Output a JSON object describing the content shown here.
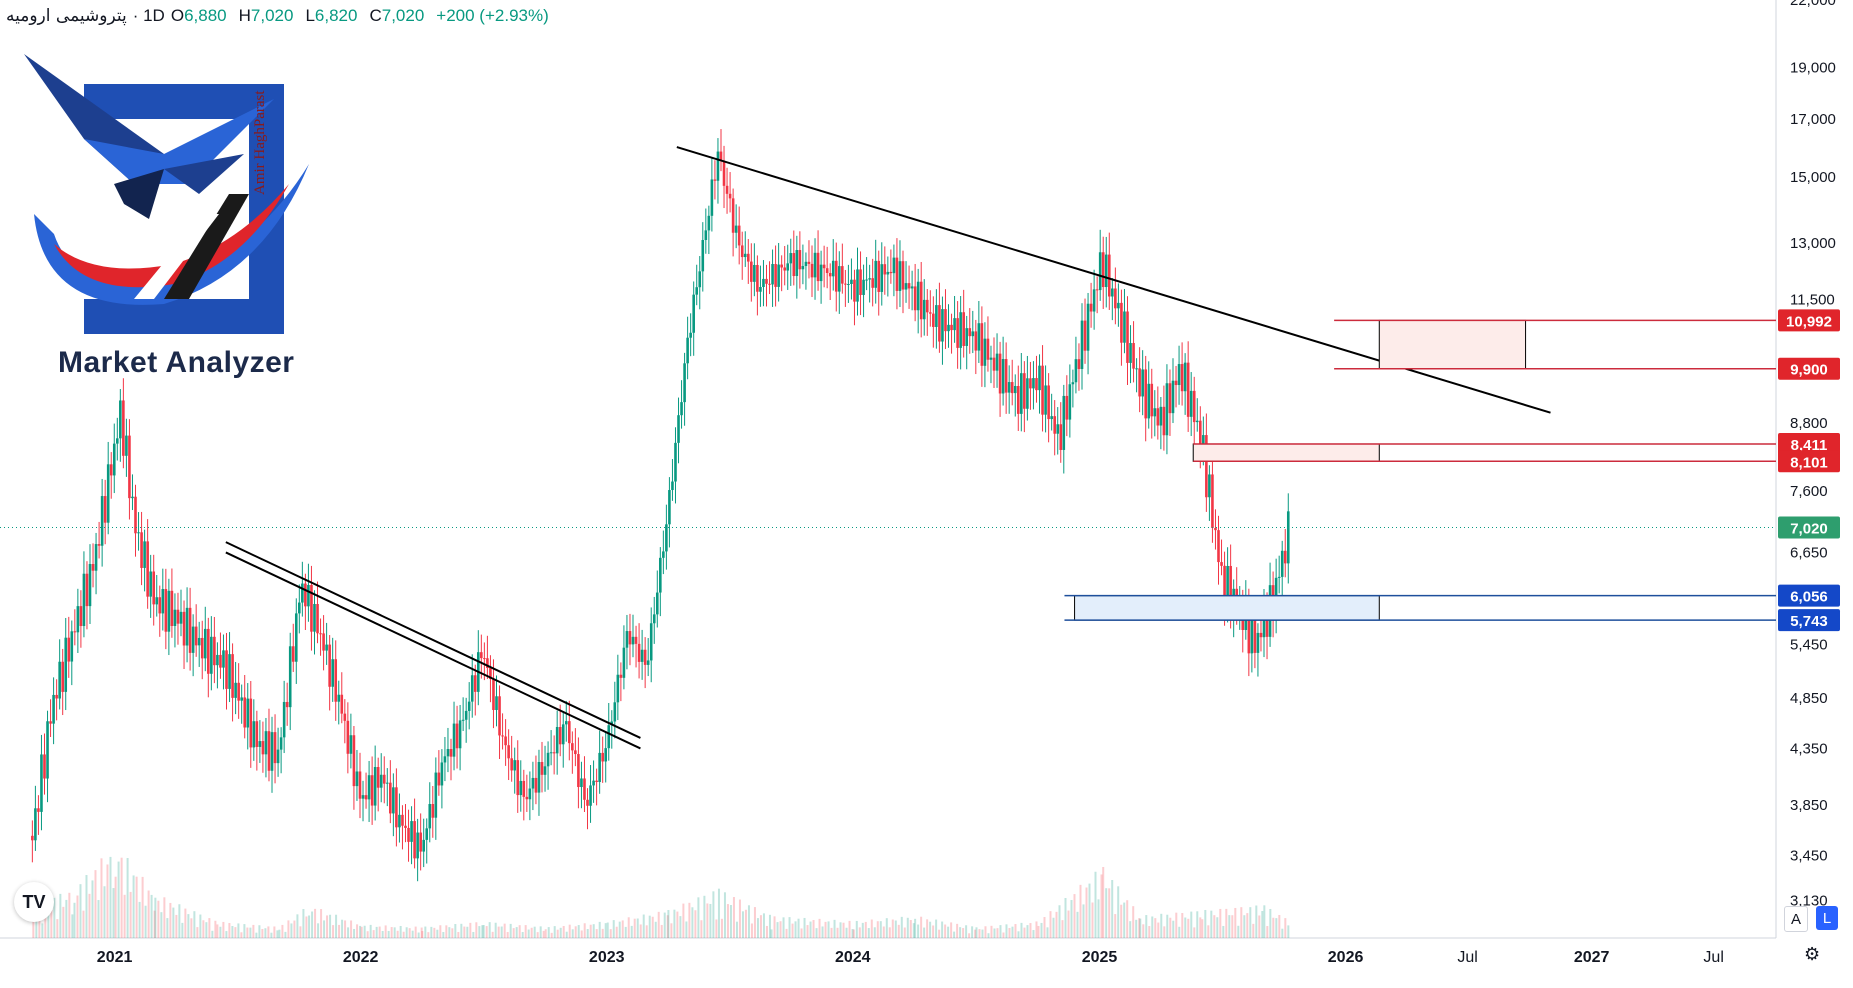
{
  "header": {
    "symbol": "پتروشیمی ارومیه",
    "interval": "· 1D",
    "ohlc": [
      {
        "key": "O",
        "value": "6,880"
      },
      {
        "key": "H",
        "value": "7,020"
      },
      {
        "key": "L",
        "value": "6,820"
      },
      {
        "key": "C",
        "value": "7,020"
      }
    ],
    "change": "+200 (+2.93%)"
  },
  "logo": {
    "text": "Market Analyzer",
    "signature": "Amir HaghParast"
  },
  "tv_logo": "TV",
  "scale_buttons": {
    "auto": "A",
    "log": "L"
  },
  "icons": {
    "settings": "gear-icon",
    "tradingview": "tradingview-logo-icon"
  },
  "colors": {
    "up": "#089981",
    "down": "#f23645",
    "resistance": "#cc2b3c",
    "support": "#1e4f9c",
    "resistance_fill": "#fdecea",
    "support_fill": "#e3eefb",
    "last_price": "#089981",
    "trendline": "#000000"
  },
  "chart_data": {
    "type": "candlestick",
    "scale": "log",
    "ylim": [
      3000,
      22000
    ],
    "y_ticks": [
      "22,000",
      "19,000",
      "17,000",
      "15,000",
      "13,000",
      "11,500",
      "9,900",
      "8,800",
      "7,600",
      "6,650",
      "5,450",
      "4,850",
      "4,350",
      "3,850",
      "3,450",
      "3,130"
    ],
    "x_ticks": [
      "2021",
      "2022",
      "2023",
      "2024",
      "2025",
      "2026",
      "Jul",
      "2027",
      "Jul"
    ],
    "x_range": [
      "2020-07-15",
      "2027-09-30"
    ],
    "last_price": {
      "value": 7020,
      "label": "7,020"
    },
    "price_series": [
      [
        "2020-09-01",
        3600
      ],
      [
        "2020-10-01",
        4800
      ],
      [
        "2020-11-01",
        5600
      ],
      [
        "2020-12-01",
        6500
      ],
      [
        "2021-01-10",
        9000
      ],
      [
        "2021-02-01",
        7000
      ],
      [
        "2021-03-01",
        6000
      ],
      [
        "2021-04-01",
        5800
      ],
      [
        "2021-05-01",
        5500
      ],
      [
        "2021-06-15",
        5200
      ],
      [
        "2021-08-01",
        4400
      ],
      [
        "2021-09-01",
        4300
      ],
      [
        "2021-10-05",
        6200
      ],
      [
        "2021-11-01",
        5600
      ],
      [
        "2021-12-01",
        4800
      ],
      [
        "2022-01-01",
        3900
      ],
      [
        "2022-02-01",
        4100
      ],
      [
        "2022-03-01",
        3700
      ],
      [
        "2022-04-01",
        3500
      ],
      [
        "2022-05-01",
        4200
      ],
      [
        "2022-06-01",
        4600
      ],
      [
        "2022-07-01",
        5400
      ],
      [
        "2022-08-01",
        4400
      ],
      [
        "2022-09-01",
        3900
      ],
      [
        "2022-10-01",
        4200
      ],
      [
        "2022-11-01",
        4600
      ],
      [
        "2022-12-01",
        3850
      ],
      [
        "2023-01-01",
        4400
      ],
      [
        "2023-02-01",
        5600
      ],
      [
        "2023-03-01",
        5200
      ],
      [
        "2023-04-01",
        7200
      ],
      [
        "2023-05-01",
        10500
      ],
      [
        "2023-06-15",
        15800
      ],
      [
        "2023-07-15",
        13000
      ],
      [
        "2023-08-15",
        11800
      ],
      [
        "2023-10-01",
        12500
      ],
      [
        "2023-12-01",
        12200
      ],
      [
        "2024-01-01",
        11800
      ],
      [
        "2024-03-01",
        12300
      ],
      [
        "2024-05-01",
        11000
      ],
      [
        "2024-07-01",
        10600
      ],
      [
        "2024-09-01",
        9300
      ],
      [
        "2024-10-01",
        9700
      ],
      [
        "2024-11-01",
        8500
      ],
      [
        "2024-12-01",
        10200
      ],
      [
        "2025-01-05",
        12500
      ],
      [
        "2025-02-01",
        11000
      ],
      [
        "2025-03-01",
        9600
      ],
      [
        "2025-04-01",
        8800
      ],
      [
        "2025-05-01",
        9900
      ],
      [
        "2025-06-01",
        8500
      ],
      [
        "2025-07-01",
        6300
      ],
      [
        "2025-08-01",
        5800
      ],
      [
        "2025-08-20",
        5450
      ],
      [
        "2025-09-15",
        6000
      ],
      [
        "2025-10-10",
        7020
      ]
    ],
    "volume": [
      [
        "2020-09-01",
        0.3
      ],
      [
        "2020-11-01",
        0.45
      ],
      [
        "2021-01-01",
        0.85
      ],
      [
        "2021-03-01",
        0.4
      ],
      [
        "2021-06-01",
        0.15
      ],
      [
        "2021-09-01",
        0.1
      ],
      [
        "2021-10-15",
        0.3
      ],
      [
        "2022-01-01",
        0.12
      ],
      [
        "2022-04-01",
        0.1
      ],
      [
        "2022-07-01",
        0.15
      ],
      [
        "2022-10-01",
        0.1
      ],
      [
        "2023-01-01",
        0.15
      ],
      [
        "2023-04-01",
        0.25
      ],
      [
        "2023-06-15",
        0.45
      ],
      [
        "2023-09-01",
        0.2
      ],
      [
        "2024-01-01",
        0.15
      ],
      [
        "2024-04-01",
        0.2
      ],
      [
        "2024-07-01",
        0.1
      ],
      [
        "2024-10-01",
        0.15
      ],
      [
        "2025-01-05",
        0.65
      ],
      [
        "2025-03-01",
        0.2
      ],
      [
        "2025-06-01",
        0.25
      ],
      [
        "2025-09-01",
        0.3
      ],
      [
        "2025-10-10",
        0.15
      ]
    ],
    "trendlines": [
      {
        "name": "major-descending",
        "from": [
          "2023-04-15",
          16000
        ],
        "to": [
          "2026-11-01",
          9000
        ]
      },
      {
        "name": "channel-upper",
        "from": [
          "2021-06-15",
          6800
        ],
        "to": [
          "2023-02-20",
          4450
        ]
      },
      {
        "name": "channel-lower",
        "from": [
          "2021-06-15",
          6650
        ],
        "to": [
          "2023-02-20",
          4350
        ]
      }
    ],
    "zones": [
      {
        "name": "resistance-zone-upper",
        "kind": "resistance",
        "top": 10992,
        "bottom": 9900,
        "box_from": "2026-02-20",
        "box_to": "2026-09-25",
        "line_from": "2025-12-15"
      },
      {
        "name": "resistance-zone-lower",
        "kind": "resistance",
        "top": 8411,
        "bottom": 8101,
        "box_from": "2025-05-20",
        "box_to": "2026-02-20",
        "line_from": "2025-05-20"
      },
      {
        "name": "support-zone",
        "kind": "support",
        "top": 6056,
        "bottom": 5743,
        "box_from": "2024-11-25",
        "box_to": "2026-02-20",
        "line_from": "2024-11-10"
      }
    ],
    "price_labels": [
      {
        "value": 10992,
        "label": "10,992",
        "kind": "resistance"
      },
      {
        "value": 9900,
        "label": "9,900",
        "kind": "resistance"
      },
      {
        "value": 8411,
        "label": "8,411",
        "kind": "resistance"
      },
      {
        "value": 8101,
        "label": "8,101",
        "kind": "resistance"
      },
      {
        "value": 6056,
        "label": "6,056",
        "kind": "support"
      },
      {
        "value": 5743,
        "label": "5,743",
        "kind": "support"
      }
    ]
  }
}
